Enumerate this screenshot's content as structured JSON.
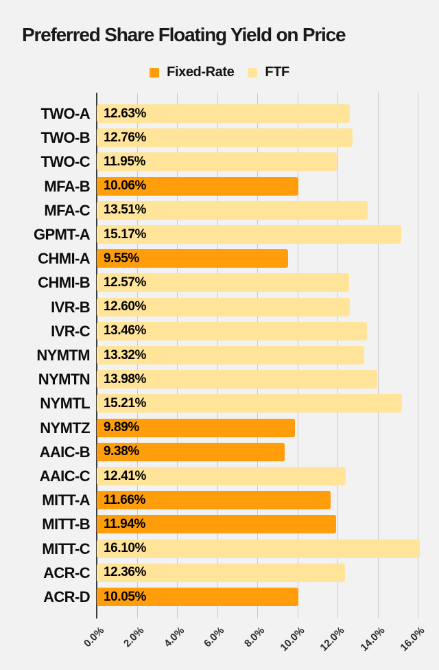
{
  "title": "Preferred Share Floating Yield on Price",
  "legend": [
    {
      "label": "Fixed-Rate",
      "color": "#ff9d0a"
    },
    {
      "label": "FTF",
      "color": "#ffe499"
    }
  ],
  "colors": {
    "background": "#f2f2f2",
    "gridline": "#c9c9c9",
    "zero_line": "#3d3d3d",
    "title_text": "#1a1a1a",
    "fixed_rate": "#ff9d0a",
    "ftf": "#ffe499"
  },
  "chart_data": {
    "type": "bar",
    "orientation": "horizontal",
    "title": "Preferred Share Floating Yield on Price",
    "xlabel": "",
    "ylabel": "",
    "grid": true,
    "legend_position": "top",
    "xlim": [
      0,
      16
    ],
    "x_axis": {
      "tick_values": [
        0,
        2,
        4,
        6,
        8,
        10,
        12,
        14,
        16
      ],
      "tick_labels": [
        "0.0%",
        "2.0%",
        "4.0%",
        "6.0%",
        "8.0%",
        "10.0%",
        "12.0%",
        "14.0%",
        "16.0%"
      ],
      "unit": "%"
    },
    "series_names": [
      "Fixed-Rate",
      "FTF"
    ],
    "bars": [
      {
        "category": "TWO-A",
        "value": 12.63,
        "label": "12.63%",
        "series": "FTF"
      },
      {
        "category": "TWO-B",
        "value": 12.76,
        "label": "12.76%",
        "series": "FTF"
      },
      {
        "category": "TWO-C",
        "value": 11.95,
        "label": "11.95%",
        "series": "FTF"
      },
      {
        "category": "MFA-B",
        "value": 10.06,
        "label": "10.06%",
        "series": "Fixed-Rate"
      },
      {
        "category": "MFA-C",
        "value": 13.51,
        "label": "13.51%",
        "series": "FTF"
      },
      {
        "category": "GPMT-A",
        "value": 15.17,
        "label": "15.17%",
        "series": "FTF"
      },
      {
        "category": "CHMI-A",
        "value": 9.55,
        "label": "9.55%",
        "series": "Fixed-Rate"
      },
      {
        "category": "CHMI-B",
        "value": 12.57,
        "label": "12.57%",
        "series": "FTF"
      },
      {
        "category": "IVR-B",
        "value": 12.6,
        "label": "12.60%",
        "series": "FTF"
      },
      {
        "category": "IVR-C",
        "value": 13.46,
        "label": "13.46%",
        "series": "FTF"
      },
      {
        "category": "NYMTM",
        "value": 13.32,
        "label": "13.32%",
        "series": "FTF"
      },
      {
        "category": "NYMTN",
        "value": 13.98,
        "label": "13.98%",
        "series": "FTF"
      },
      {
        "category": "NYMTL",
        "value": 15.21,
        "label": "15.21%",
        "series": "FTF"
      },
      {
        "category": "NYMTZ",
        "value": 9.89,
        "label": "9.89%",
        "series": "Fixed-Rate"
      },
      {
        "category": "AAIC-B",
        "value": 9.38,
        "label": "9.38%",
        "series": "Fixed-Rate"
      },
      {
        "category": "AAIC-C",
        "value": 12.41,
        "label": "12.41%",
        "series": "FTF"
      },
      {
        "category": "MITT-A",
        "value": 11.66,
        "label": "11.66%",
        "series": "Fixed-Rate"
      },
      {
        "category": "MITT-B",
        "value": 11.94,
        "label": "11.94%",
        "series": "Fixed-Rate"
      },
      {
        "category": "MITT-C",
        "value": 16.1,
        "label": "16.10%",
        "series": "FTF"
      },
      {
        "category": "ACR-C",
        "value": 12.36,
        "label": "12.36%",
        "series": "FTF"
      },
      {
        "category": "ACR-D",
        "value": 10.05,
        "label": "10.05%",
        "series": "Fixed-Rate"
      }
    ]
  }
}
